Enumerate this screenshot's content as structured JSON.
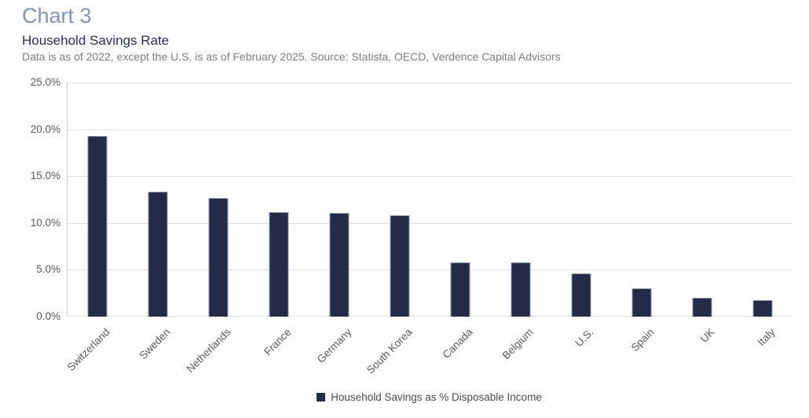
{
  "header": {
    "title": "Chart 3",
    "subtitle": "Household Savings Rate",
    "note": "Data is as of 2022, except the U.S. is as of February 2025. Source: Statista, OECD, Verdence Capital Advisors"
  },
  "chart": {
    "y_ticks": [
      "0.0%",
      "5.0%",
      "10.0%",
      "15.0%",
      "20.0%",
      "25.0%"
    ],
    "legend": "Household Savings as % Disposable Income"
  },
  "colors": {
    "bar": "#232B47",
    "bar_border": "#9099AF",
    "title": "#8494B6",
    "subtitle": "#272D4D",
    "note": "#7C7C7C",
    "axis_text": "#595959",
    "gridline": "#E0E0E0"
  },
  "chart_data": {
    "type": "bar",
    "title": "Household Savings Rate",
    "categories": [
      "Switzerland",
      "Sweden",
      "Netherlands",
      "France",
      "Germany",
      "South Korea",
      "Canada",
      "Belgium",
      "U.S.",
      "Spain",
      "UK",
      "Italy"
    ],
    "values": [
      19.3,
      13.3,
      12.7,
      11.2,
      11.1,
      10.8,
      5.8,
      5.8,
      4.6,
      3.0,
      2.0,
      1.8
    ],
    "series": [
      {
        "name": "Household Savings as % Disposable Income",
        "values": [
          19.3,
          13.3,
          12.7,
          11.2,
          11.1,
          10.8,
          5.8,
          5.8,
          4.6,
          3.0,
          2.0,
          1.8
        ]
      }
    ],
    "xlabel": "",
    "ylabel": "",
    "ylim": [
      0,
      25
    ],
    "y_tick_step": 5,
    "y_tick_format": "percent_one_decimal",
    "grid": true,
    "legend_position": "bottom"
  }
}
